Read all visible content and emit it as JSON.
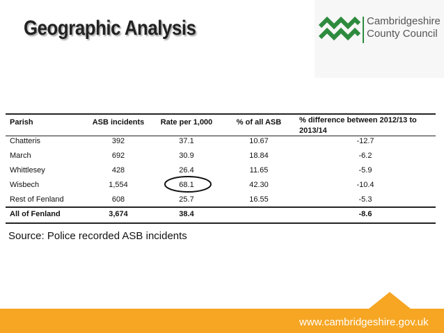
{
  "header": {
    "title": "Geographic Analysis",
    "logo_line1": "Cambridgeshire",
    "logo_line2": "County Council"
  },
  "table": {
    "columns": [
      "Parish",
      "ASB incidents",
      "Rate per 1,000",
      "% of all ASB",
      "% difference between 2012/13 to 2013/14"
    ],
    "rows": [
      [
        "Chatteris",
        "392",
        "37.1",
        "10.67",
        "-12.7"
      ],
      [
        "March",
        "692",
        "30.9",
        "18.84",
        "-6.2"
      ],
      [
        "Whittlesey",
        "428",
        "26.4",
        "11.65",
        "-5.9"
      ],
      [
        "Wisbech",
        "1,554",
        "68.1",
        "42.30",
        "-10.4"
      ],
      [
        "Rest of Fenland",
        "608",
        "25.7",
        "16.55",
        "-5.3"
      ]
    ],
    "total": [
      "All of Fenland",
      "3,674",
      "38.4",
      "-8.6"
    ]
  },
  "source": "Source: Police recorded ASB incidents",
  "footer": {
    "url": "www.cambridgeshire.gov.uk"
  }
}
